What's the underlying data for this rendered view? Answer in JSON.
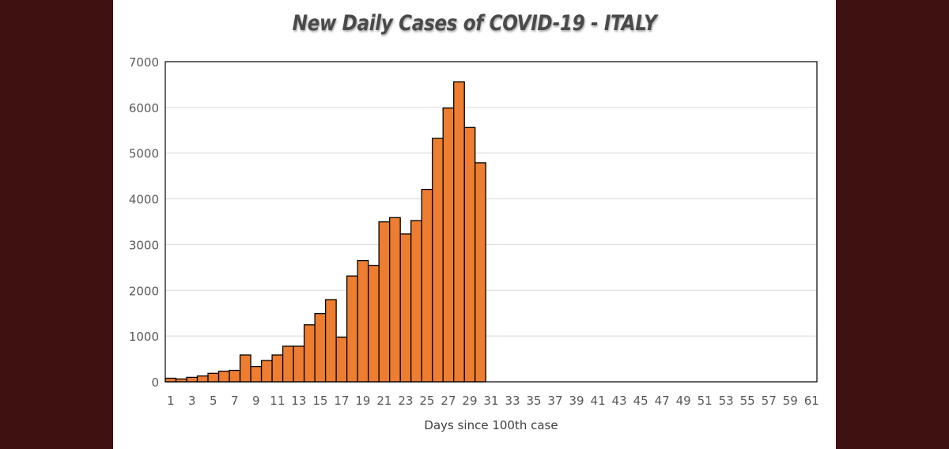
{
  "chart_data": {
    "type": "bar",
    "title": "New Daily Cases of COVID-19 - ITALY",
    "xlabel": "Days since 100th case",
    "ylabel": "",
    "ylim": [
      0,
      7000
    ],
    "y_ticks": [
      0,
      1000,
      2000,
      3000,
      4000,
      5000,
      6000,
      7000
    ],
    "x_range": [
      1,
      61
    ],
    "x_tick_labels": [
      1,
      3,
      5,
      7,
      9,
      11,
      13,
      15,
      17,
      19,
      21,
      23,
      25,
      27,
      29,
      31,
      33,
      35,
      37,
      39,
      41,
      43,
      45,
      47,
      49,
      51,
      53,
      55,
      57,
      59,
      61
    ],
    "categories": [
      1,
      2,
      3,
      4,
      5,
      6,
      7,
      8,
      9,
      10,
      11,
      12,
      13,
      14,
      15,
      16,
      17,
      18,
      19,
      20,
      21,
      22,
      23,
      24,
      25,
      26,
      27,
      28,
      29,
      30
    ],
    "values": [
      78,
      62,
      97,
      128,
      185,
      233,
      250,
      587,
      335,
      466,
      587,
      778,
      778,
      1247,
      1492,
      1797,
      977,
      2313,
      2651,
      2547,
      3497,
      3590,
      3233,
      3526,
      4207,
      5322,
      5986,
      6557,
      5560,
      4789
    ],
    "grid": true,
    "legend": "none",
    "colors": {
      "bar_fill": "#ed7d31",
      "bar_edge": "#000000",
      "grid": "#d9d9d9",
      "background": "#3f1110"
    }
  }
}
